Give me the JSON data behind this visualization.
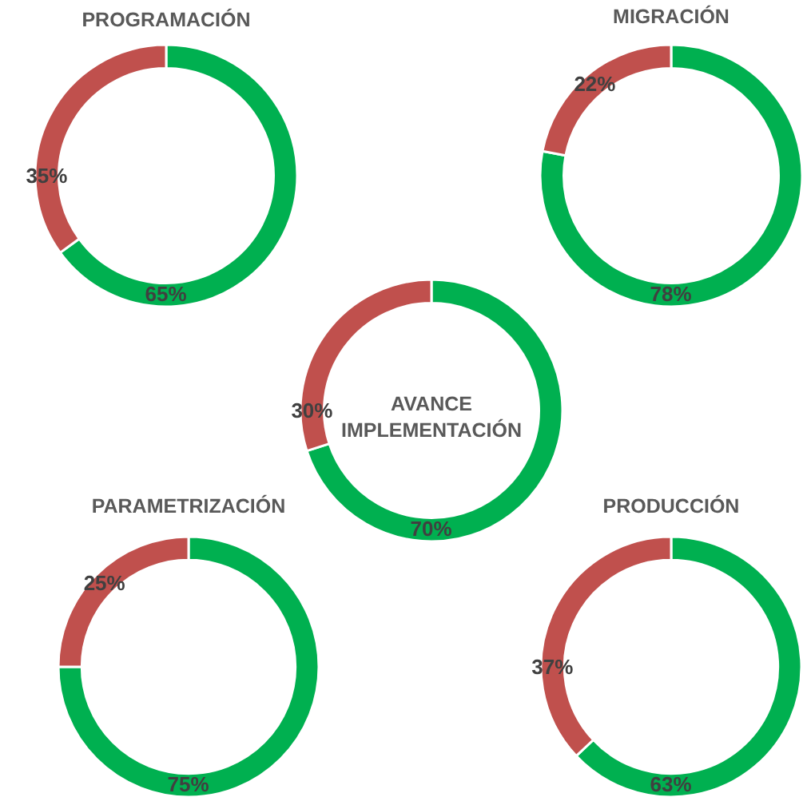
{
  "chart_data": [
    {
      "type": "donut",
      "title": "PROGRAMACIÓN",
      "categories": [
        null,
        null
      ],
      "values": [
        65,
        35
      ],
      "colors": [
        "#00b050",
        "#c0504d"
      ],
      "value_labels": [
        "65%",
        "35%"
      ],
      "legend": false
    },
    {
      "type": "donut",
      "title": "MIGRACIÓN",
      "categories": [
        null,
        null
      ],
      "values": [
        78,
        22
      ],
      "colors": [
        "#00b050",
        "#c0504d"
      ],
      "value_labels": [
        "78%",
        "22%"
      ],
      "legend": false
    },
    {
      "type": "donut",
      "title": "AVANCE IMPLEMENTACIÓN",
      "categories": [
        null,
        null
      ],
      "values": [
        70,
        30
      ],
      "colors": [
        "#00b050",
        "#c0504d"
      ],
      "value_labels": [
        "70%",
        "30%"
      ],
      "legend": false
    },
    {
      "type": "donut",
      "title": "PARAMETRIZACIÓN",
      "categories": [
        null,
        null
      ],
      "values": [
        75,
        25
      ],
      "colors": [
        "#00b050",
        "#c0504d"
      ],
      "value_labels": [
        "75%",
        "25%"
      ],
      "legend": false
    },
    {
      "type": "donut",
      "title": "PRODUCCIÓN",
      "categories": [
        null,
        null
      ],
      "values": [
        63,
        37
      ],
      "colors": [
        "#00b050",
        "#c0504d"
      ],
      "value_labels": [
        "63%",
        "37%"
      ],
      "legend": false
    }
  ]
}
